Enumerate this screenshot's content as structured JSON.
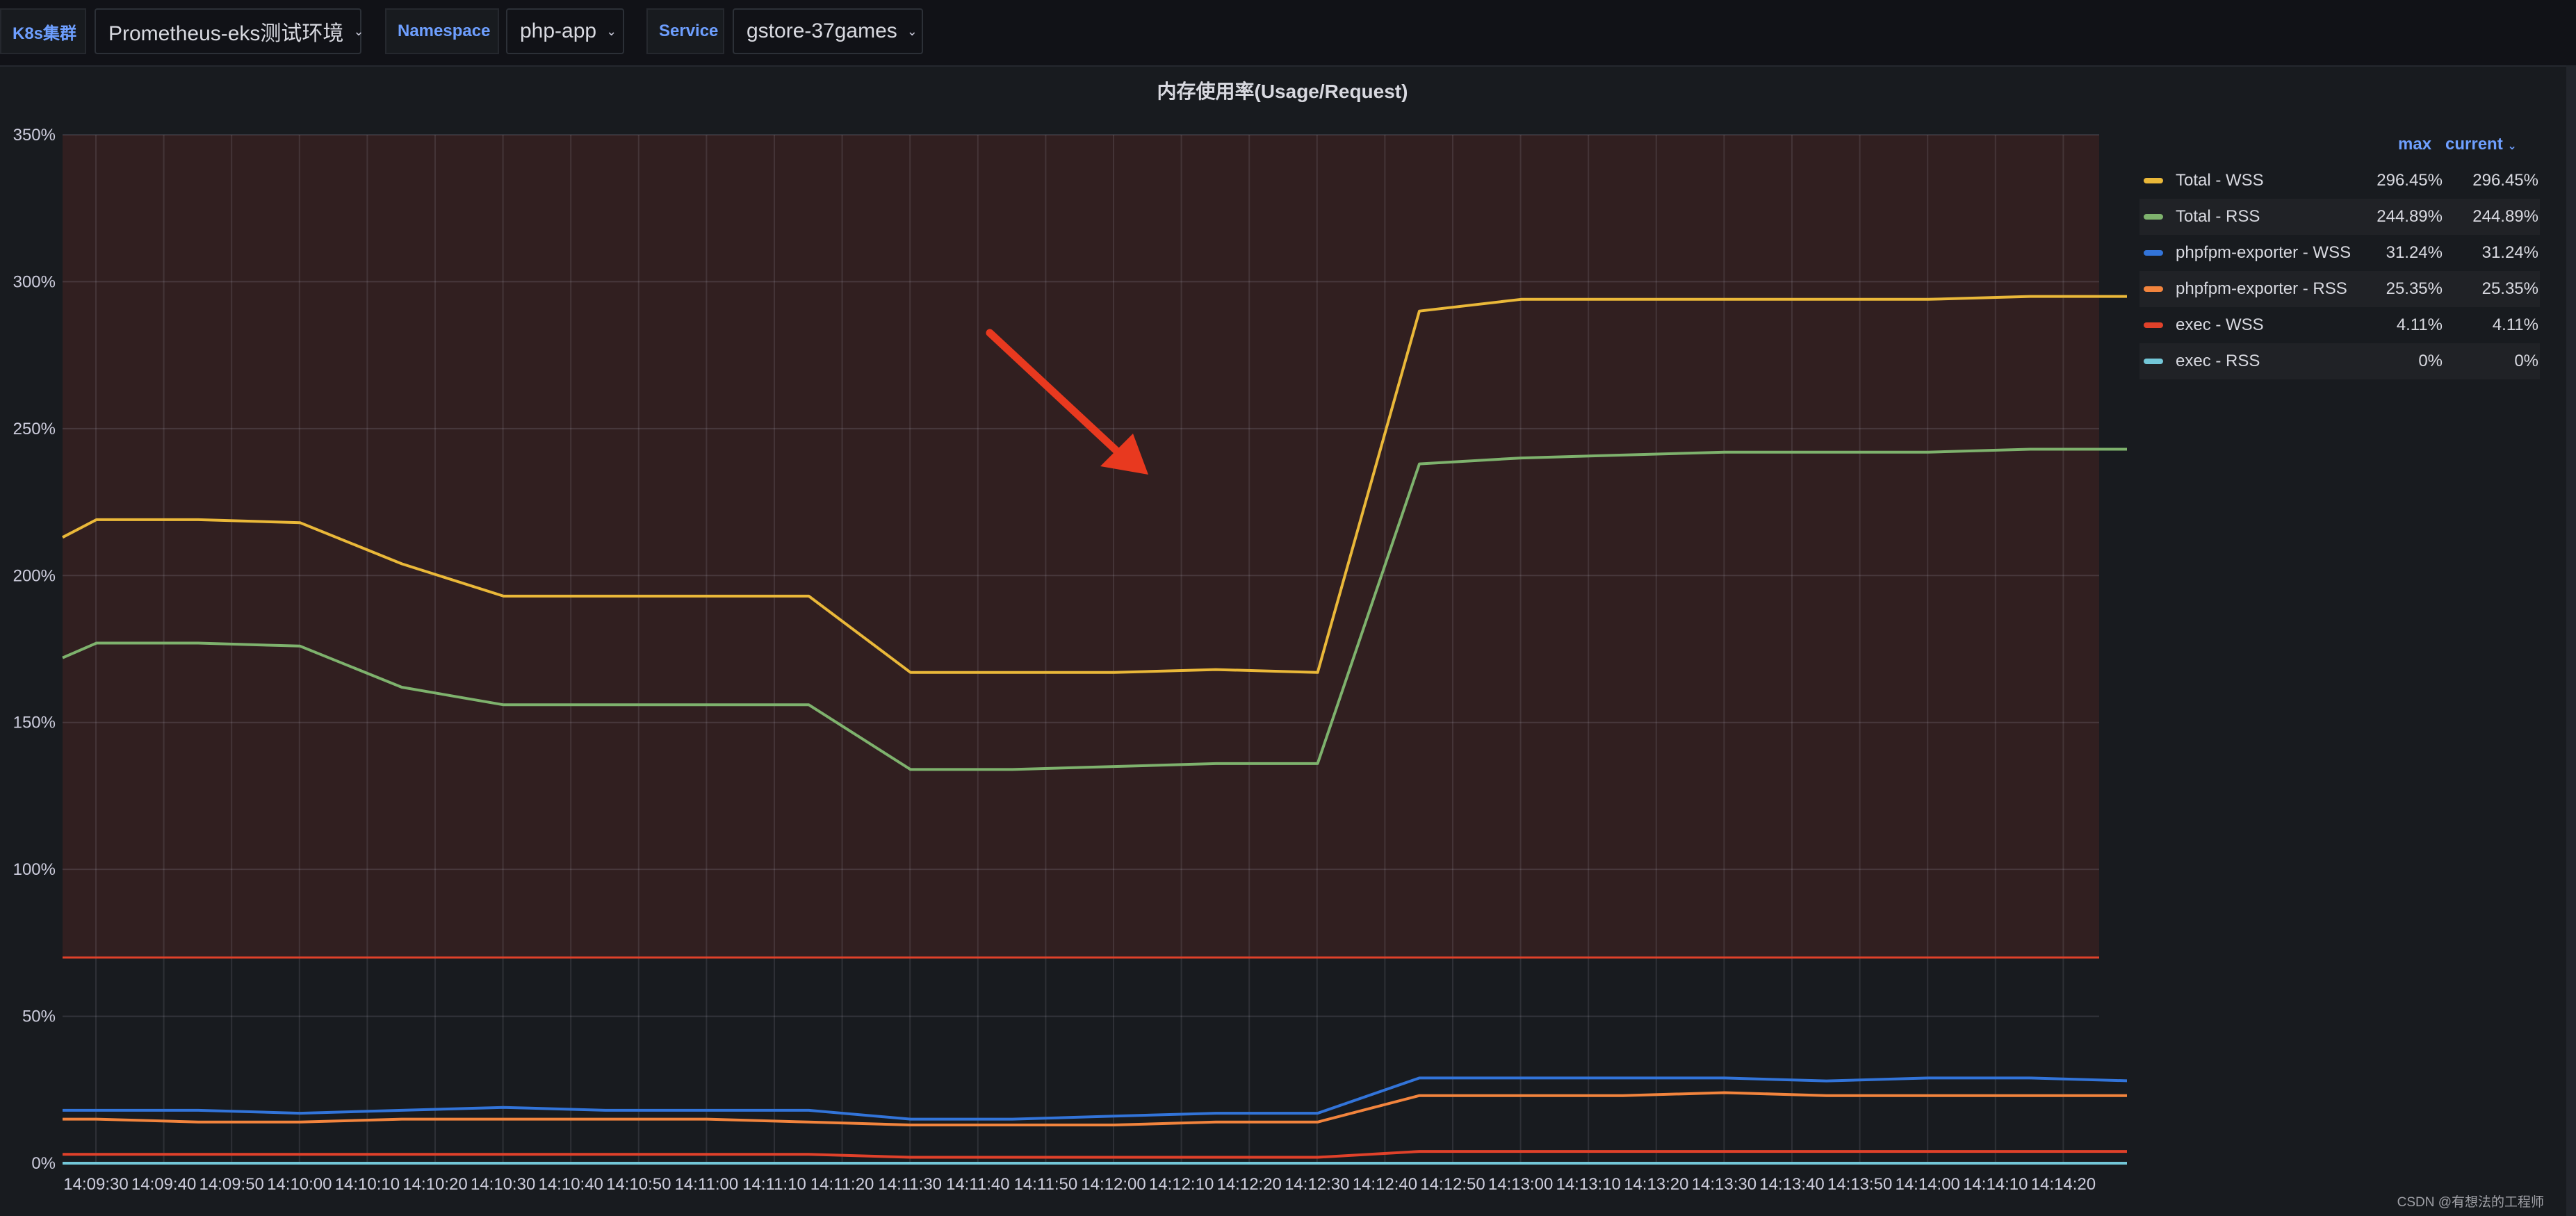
{
  "variables": [
    {
      "label": "K8s集群",
      "value": "Prometheus-eks测试环境"
    },
    {
      "label": "Namespace",
      "value": "php-app"
    },
    {
      "label": "Service",
      "value": "gstore-37games"
    }
  ],
  "panel": {
    "title": "内存使用率(Usage/Request)"
  },
  "legend": {
    "columns": [
      "max",
      "current"
    ],
    "rows": [
      {
        "name": "Total - WSS",
        "max": "296.45%",
        "current": "296.45%",
        "color": "#eab839"
      },
      {
        "name": "Total - RSS",
        "max": "244.89%",
        "current": "244.89%",
        "color": "#7eb26d"
      },
      {
        "name": "phpfpm-exporter - WSS",
        "max": "31.24%",
        "current": "31.24%",
        "color": "#3274d9"
      },
      {
        "name": "phpfpm-exporter - RSS",
        "max": "25.35%",
        "current": "25.35%",
        "color": "#f2843d"
      },
      {
        "name": "exec - WSS",
        "max": "4.11%",
        "current": "4.11%",
        "color": "#e0412a"
      },
      {
        "name": "exec - RSS",
        "max": "0%",
        "current": "0%",
        "color": "#73c7d8"
      }
    ]
  },
  "watermark": "CSDN @有想法的工程师",
  "chart_data": {
    "type": "line",
    "title": "内存使用率(Usage/Request)",
    "y_unit": "%",
    "ylim": [
      0,
      350
    ],
    "y_ticks": [
      "0%",
      "50%",
      "100%",
      "150%",
      "200%",
      "250%",
      "300%",
      "350%"
    ],
    "y_tick_values": [
      0,
      50,
      100,
      150,
      200,
      250,
      300,
      350
    ],
    "x_ticks": [
      "14:09:30",
      "14:09:40",
      "14:09:50",
      "14:10:00",
      "14:10:10",
      "14:10:20",
      "14:10:30",
      "14:10:40",
      "14:10:50",
      "14:11:00",
      "14:11:10",
      "14:11:20",
      "14:11:30",
      "14:11:40",
      "14:11:50",
      "14:12:00",
      "14:12:10",
      "14:12:20",
      "14:12:30",
      "14:12:40",
      "14:12:50",
      "14:13:00",
      "14:13:10",
      "14:13:20",
      "14:13:30",
      "14:13:40",
      "14:13:50",
      "14:14:00",
      "14:14:10",
      "14:14:20"
    ],
    "threshold": {
      "value": 70,
      "color": "#e0412a",
      "fill": "rgba(224,65,42,0.13)"
    },
    "grid": true,
    "legend_position": "right",
    "x_seconds": [
      0,
      5,
      20,
      35,
      50,
      65,
      80,
      95,
      110,
      125,
      140,
      155,
      170,
      185,
      200,
      215,
      230,
      245,
      260,
      275,
      290,
      305,
      320,
      335,
      350,
      365,
      380,
      395,
      410,
      425
    ],
    "series": [
      {
        "name": "Total - WSS",
        "color": "#eab839",
        "values": [
          213,
          219,
          219,
          218,
          204,
          193,
          193,
          193,
          193,
          167,
          167,
          167,
          168,
          167,
          290,
          294,
          294,
          294,
          294,
          294,
          295,
          295,
          295,
          296,
          296,
          296,
          296,
          296,
          296,
          296.45
        ]
      },
      {
        "name": "Total - RSS",
        "color": "#7eb26d",
        "values": [
          172,
          177,
          177,
          176,
          162,
          156,
          156,
          156,
          156,
          134,
          134,
          135,
          136,
          136,
          238,
          240,
          241,
          242,
          242,
          242,
          243,
          243,
          243,
          244,
          244,
          244,
          244.5,
          244.8,
          244.9,
          244.89
        ]
      },
      {
        "name": "phpfpm-exporter - WSS",
        "color": "#3274d9",
        "values": [
          18,
          18,
          18,
          17,
          18,
          19,
          18,
          18,
          18,
          15,
          15,
          16,
          17,
          17,
          29,
          29,
          29,
          29,
          28,
          29,
          29,
          28,
          28,
          29,
          29,
          30,
          30,
          31,
          31,
          31.24
        ]
      },
      {
        "name": "phpfpm-exporter - RSS",
        "color": "#f2843d",
        "values": [
          15,
          15,
          14,
          14,
          15,
          15,
          15,
          15,
          14,
          13,
          13,
          13,
          14,
          14,
          23,
          23,
          23,
          24,
          23,
          23,
          23,
          23,
          23,
          24,
          24,
          24,
          25,
          25,
          25,
          25.35
        ]
      },
      {
        "name": "exec - WSS",
        "color": "#e0412a",
        "values": [
          3,
          3,
          3,
          3,
          3,
          3,
          3,
          3,
          3,
          2,
          2,
          2,
          2,
          2,
          4,
          4,
          4,
          4,
          4,
          4,
          4,
          4,
          4,
          4,
          4,
          4,
          4,
          4,
          4,
          4.11
        ]
      },
      {
        "name": "exec - RSS",
        "color": "#73c7d8",
        "values": [
          0,
          0,
          0,
          0,
          0,
          0,
          0,
          0,
          0,
          0,
          0,
          0,
          0,
          0,
          0,
          0,
          0,
          0,
          0,
          0,
          0,
          0,
          0,
          0,
          0,
          0,
          0,
          0,
          0,
          0
        ]
      }
    ],
    "annotation": {
      "type": "arrow",
      "color": "#e8391f"
    }
  }
}
